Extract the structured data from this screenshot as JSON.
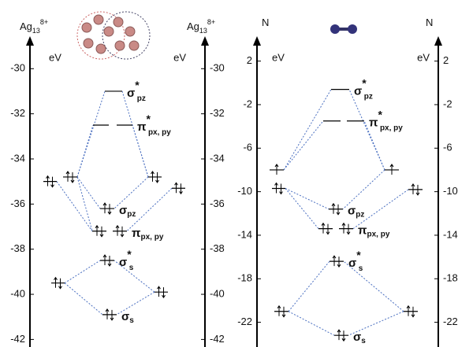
{
  "panels": [
    {
      "left_label": {
        "text": "Ag",
        "sub": "13",
        "sup": "8+"
      },
      "right_label": {
        "text": "Ag",
        "sub": "13",
        "sup": "8+"
      },
      "unit": "eV",
      "ylim": [
        -28.7,
        -42.3
      ],
      "yticks": [
        -30,
        -32,
        -34,
        -36,
        -38,
        -40,
        -42
      ],
      "levels": [
        {
          "energy": -35,
          "electrons": 2
        },
        {
          "energy": -34.8,
          "electrons": 2
        },
        {
          "energy": -39.5,
          "electrons": 2
        },
        {
          "energy": -34.8,
          "electrons": 2
        },
        {
          "energy": -35.3,
          "electrons": 2
        },
        {
          "energy": -39.9,
          "electrons": 2
        },
        {
          "energy": -31,
          "electrons": 0,
          "label": {
            "symbol": "σ",
            "sup": "*",
            "sub": "pz"
          }
        },
        {
          "energy": -32.5,
          "electrons": 0
        },
        {
          "energy": -32.5,
          "electrons": 0,
          "label": {
            "symbol": "π",
            "sup": "*",
            "sub": "px, py"
          }
        },
        {
          "energy": -36.2,
          "electrons": 2,
          "label": {
            "symbol": "σ",
            "sub": "pz"
          }
        },
        {
          "energy": -37.2,
          "electrons": 2
        },
        {
          "energy": -37.2,
          "electrons": 2,
          "label": {
            "symbol": "π",
            "sub": "px, py"
          }
        },
        {
          "energy": -38.5,
          "electrons": 2,
          "label": {
            "symbol": "σ",
            "sup": "*",
            "sub": "s"
          }
        },
        {
          "energy": -40.9,
          "electrons": 2,
          "label": {
            "symbol": "σ",
            "sub": "s"
          }
        }
      ]
    },
    {
      "left_label": {
        "text": "N"
      },
      "right_label": {
        "text": "N"
      },
      "unit": "eV",
      "ylim": [
        4,
        -24.2
      ],
      "yticks": [
        2,
        -2,
        -6,
        -10,
        -14,
        -18,
        -22
      ],
      "levels": [
        {
          "energy": -8,
          "electrons": 1
        },
        {
          "energy": -9.7,
          "electrons": 2
        },
        {
          "energy": -21,
          "electrons": 2
        },
        {
          "energy": -8,
          "electrons": 1
        },
        {
          "energy": -9.8,
          "electrons": 2
        },
        {
          "energy": -21,
          "electrons": 2
        },
        {
          "energy": -0.6,
          "electrons": 0,
          "label": {
            "symbol": "σ",
            "sup": "*",
            "sub": "pz"
          }
        },
        {
          "energy": -3.5,
          "electrons": 0
        },
        {
          "energy": -3.5,
          "electrons": 0,
          "label": {
            "symbol": "π",
            "sup": "*",
            "sub": "px, py"
          }
        },
        {
          "energy": -11.6,
          "electrons": 2,
          "label": {
            "symbol": "σ",
            "sub": "pz"
          }
        },
        {
          "energy": -13.4,
          "electrons": 2
        },
        {
          "energy": -13.4,
          "electrons": 2,
          "label": {
            "symbol": "π",
            "sub": "px, py"
          }
        },
        {
          "energy": -16.4,
          "electrons": 2,
          "label": {
            "symbol": "σ",
            "sup": "*",
            "sub": "s"
          }
        },
        {
          "energy": -23.2,
          "electrons": 2,
          "label": {
            "symbol": "σ",
            "sub": "s"
          }
        }
      ]
    }
  ]
}
